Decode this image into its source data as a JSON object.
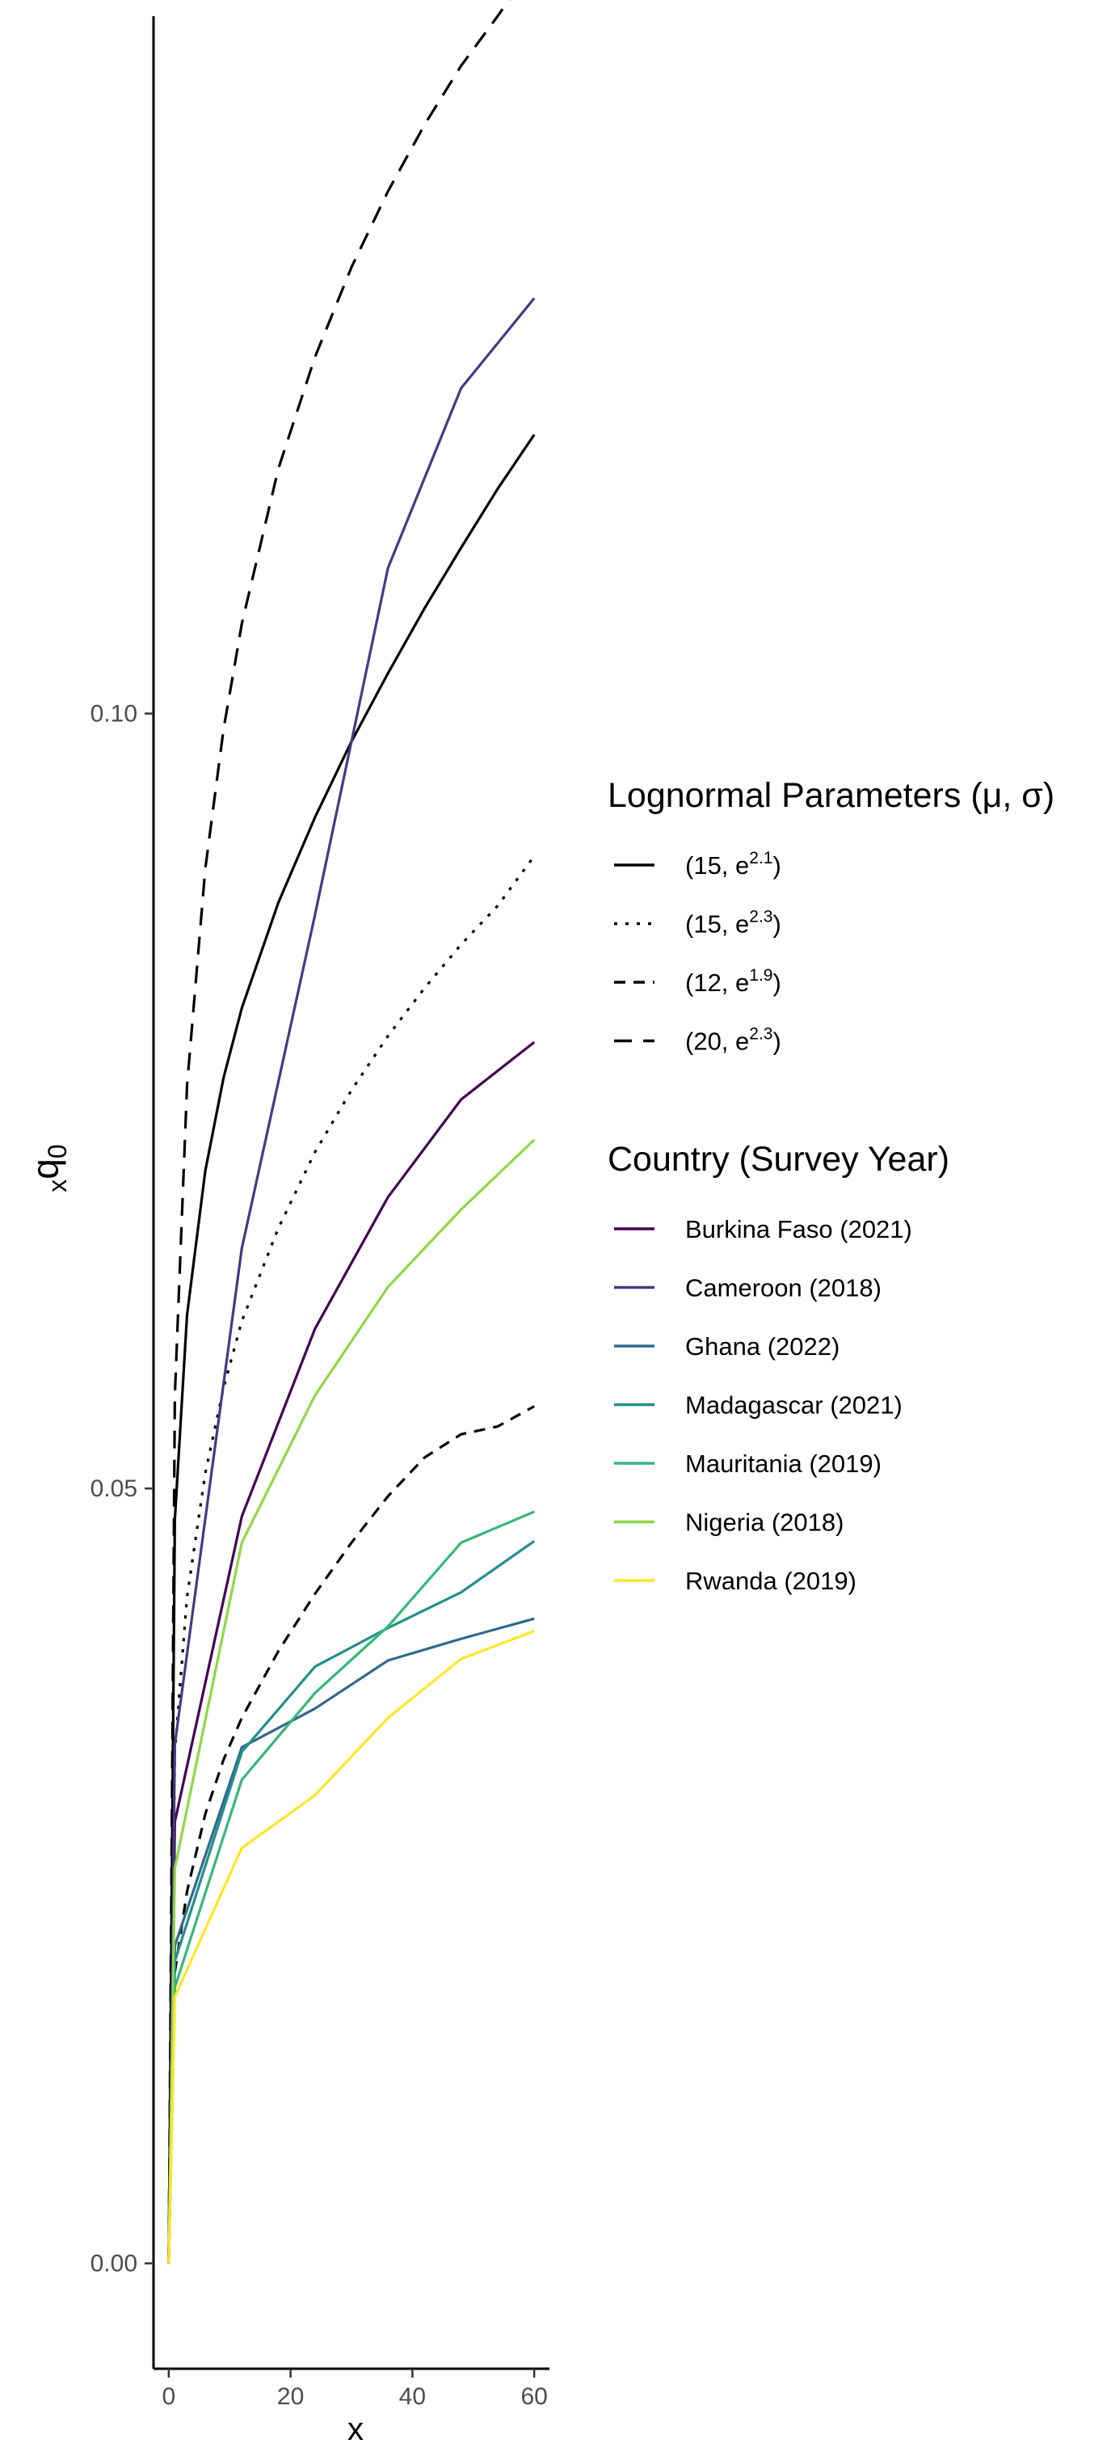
{
  "chart_data": {
    "type": "line",
    "xlabel": "x",
    "ylabel": {
      "prefix": "x",
      "main": "q",
      "sub": "0"
    },
    "xlim": [
      -2.5,
      62.5
    ],
    "ylim": [
      -0.0068,
      0.145
    ],
    "x_ticks": [
      0,
      20,
      40,
      60
    ],
    "x_tick_labels": [
      "0",
      "20",
      "40",
      "60"
    ],
    "y_ticks": [
      0,
      0.05,
      0.1
    ],
    "y_tick_labels": [
      "0.00",
      "0.05",
      "0.10"
    ],
    "grid": false,
    "legend_position": "right",
    "legends": [
      {
        "title": "Lognormal Parameters (μ, σ)",
        "entries": [
          {
            "label": "(15, e",
            "sup": "2.1",
            "close": ")",
            "linetype": "solid"
          },
          {
            "label": "(15, e",
            "sup": "2.3",
            "close": ")",
            "linetype": "dotted"
          },
          {
            "label": "(12, e",
            "sup": "1.9",
            "close": ")",
            "linetype": "dashed-short"
          },
          {
            "label": "(20, e",
            "sup": "2.3",
            "close": ")",
            "linetype": "dashed-long"
          }
        ]
      },
      {
        "title": "Country (Survey Year)",
        "entries": [
          {
            "label": "Burkina Faso (2021)",
            "color": "#440154"
          },
          {
            "label": "Cameroon (2018)",
            "color": "#443A83"
          },
          {
            "label": "Ghana (2022)",
            "color": "#31688E"
          },
          {
            "label": "Madagascar (2021)",
            "color": "#21908C"
          },
          {
            "label": "Mauritania (2019)",
            "color": "#35B779"
          },
          {
            "label": "Nigeria (2018)",
            "color": "#8FD744"
          },
          {
            "label": "Rwanda (2019)",
            "color": "#FDE725"
          }
        ]
      }
    ],
    "lognormal_series": [
      {
        "name": "(15, e^2.1)",
        "linetype": "solid",
        "color": "#000000",
        "x": [
          0,
          1,
          3,
          6,
          9,
          12,
          18,
          24,
          30,
          36,
          42,
          48,
          54,
          60
        ],
        "y": [
          0.0,
          0.048,
          0.0612,
          0.0705,
          0.0765,
          0.081,
          0.0878,
          0.0933,
          0.0982,
          0.1026,
          0.1068,
          0.1107,
          0.1145,
          0.118
        ]
      },
      {
        "name": "(15, e^2.3)",
        "linetype": "dotted",
        "color": "#000000",
        "x": [
          0,
          1,
          3,
          6,
          9,
          12,
          18,
          24,
          30,
          36,
          42,
          48,
          54,
          60
        ],
        "y": [
          0.0,
          0.033,
          0.043,
          0.051,
          0.0565,
          0.0608,
          0.0668,
          0.0717,
          0.0757,
          0.0792,
          0.0823,
          0.0851,
          0.0876,
          0.0908
        ]
      },
      {
        "name": "(12, e^1.9)",
        "linetype": "dashed-short",
        "color": "#000000",
        "x": [
          0,
          1,
          3,
          6,
          9,
          12,
          18,
          24,
          30,
          36,
          42,
          48,
          54,
          60
        ],
        "y": [
          0.0,
          0.0188,
          0.024,
          0.029,
          0.0325,
          0.0352,
          0.0395,
          0.0432,
          0.0465,
          0.0495,
          0.052,
          0.0535,
          0.054,
          0.0553
        ]
      },
      {
        "name": "(20, e^2.3)",
        "linetype": "dashed-long",
        "color": "#000000",
        "x": [
          0,
          1,
          3,
          6,
          9,
          12,
          18,
          24,
          30,
          36,
          42,
          48,
          54,
          60
        ],
        "y": [
          0.0,
          0.056,
          0.076,
          0.09,
          0.099,
          0.1058,
          0.1158,
          0.123,
          0.1288,
          0.1337,
          0.138,
          0.1418,
          0.145,
          0.1484
        ]
      }
    ],
    "country_series": [
      {
        "name": "Burkina Faso (2021)",
        "color": "#440154",
        "x": [
          0,
          1,
          12,
          24,
          36,
          48,
          60
        ],
        "y": [
          0.0,
          0.0285,
          0.0482,
          0.0603,
          0.0688,
          0.0751,
          0.0788
        ]
      },
      {
        "name": "Cameroon (2018)",
        "color": "#443A83",
        "x": [
          0,
          1,
          12,
          24,
          36,
          48,
          60
        ],
        "y": [
          0.0,
          0.0335,
          0.0655,
          0.087,
          0.1094,
          0.121,
          0.1268
        ]
      },
      {
        "name": "Ghana (2022)",
        "color": "#31688E",
        "x": [
          0,
          1,
          12,
          24,
          36,
          48,
          60
        ],
        "y": [
          0.0,
          0.0205,
          0.0333,
          0.0358,
          0.0389,
          0.0403,
          0.0416
        ]
      },
      {
        "name": "Madagascar (2021)",
        "color": "#21908C",
        "x": [
          0,
          1,
          12,
          24,
          36,
          48,
          60
        ],
        "y": [
          0.0,
          0.0195,
          0.033,
          0.0385,
          0.041,
          0.0433,
          0.0466
        ]
      },
      {
        "name": "Mauritania (2019)",
        "color": "#35B779",
        "x": [
          0,
          1,
          12,
          24,
          36,
          48,
          60
        ],
        "y": [
          0.0,
          0.0178,
          0.0312,
          0.0368,
          0.0411,
          0.0465,
          0.0485
        ]
      },
      {
        "name": "Nigeria (2018)",
        "color": "#8FD744",
        "x": [
          0,
          1,
          12,
          24,
          36,
          48,
          60
        ],
        "y": [
          0.0,
          0.0255,
          0.0465,
          0.056,
          0.063,
          0.068,
          0.0725
        ]
      },
      {
        "name": "Rwanda (2019)",
        "color": "#FDE725",
        "x": [
          0,
          1,
          12,
          24,
          36,
          48,
          60
        ],
        "y": [
          0.0,
          0.0172,
          0.0268,
          0.0302,
          0.0352,
          0.039,
          0.0408
        ]
      }
    ]
  }
}
